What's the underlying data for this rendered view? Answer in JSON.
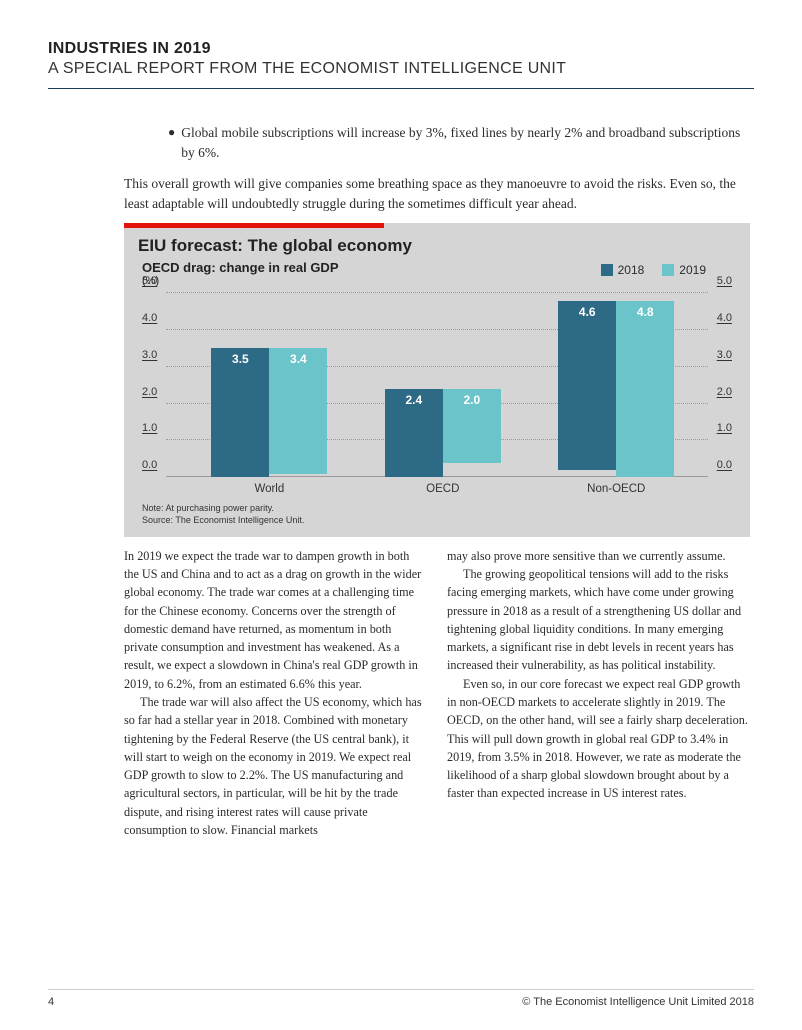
{
  "header": {
    "title": "INDUSTRIES IN 2019",
    "subtitle": "A SPECIAL REPORT FROM THE ECONOMIST INTELLIGENCE UNIT"
  },
  "bullet": "Global mobile subscriptions will increase by 3%, fixed lines by nearly 2% and broadband subscriptions by 6%.",
  "intro_para": "This overall growth will give companies some breathing space as they manoeuvre to avoid the risks. Even so, the least adaptable will undoubtedly struggle during the sometimes difficult year ahead.",
  "chart": {
    "type": "bar",
    "title": "EIU forecast: The global economy",
    "subtitle": "OECD drag: change in real GDP",
    "unit": "(%)",
    "legend": [
      {
        "label": "2018",
        "color": "#2d6a85"
      },
      {
        "label": "2019",
        "color": "#6bc4c9"
      }
    ],
    "categories": [
      "World",
      "OECD",
      "Non-OECD"
    ],
    "series": {
      "y2018": [
        3.5,
        2.4,
        4.6
      ],
      "y2019": [
        3.4,
        2.0,
        4.8
      ]
    },
    "ylim": [
      0,
      5.0
    ],
    "yticks": [
      0.0,
      1.0,
      2.0,
      3.0,
      4.0,
      5.0
    ],
    "note1": "Note: At purchasing power parity.",
    "note2": "Source: The Economist Intelligence Unit.",
    "colors": {
      "bg": "#d5d5d5",
      "accent": "#e3120b",
      "grid": "#9a9a9a"
    }
  },
  "col1": {
    "p1": "In 2019 we expect the trade war to dampen growth in both the US and China and to act as a drag on growth in the wider global economy. The trade war comes at a challenging time for the Chinese economy. Concerns over the strength of domestic demand have returned, as momentum in both private consumption and investment has weakened. As a result, we expect a slowdown in China's real GDP growth in 2019, to 6.2%, from an estimated 6.6% this year.",
    "p2": "The trade war will also affect the US economy, which has so far had a stellar year in 2018. Combined with monetary tightening by the Federal Reserve (the US central bank), it will start to weigh on the economy in 2019. We expect real GDP growth to slow to 2.2%. The US manufacturing and agricultural sectors, in particular, will be hit by the trade dispute, and rising interest rates will cause private consumption to slow. Financial markets"
  },
  "col2": {
    "p1": "may also prove more sensitive than we currently assume.",
    "p2": "The growing geopolitical tensions will add to the risks facing emerging markets, which have come under growing pressure in 2018 as a result of a strengthening US dollar and tightening global liquidity conditions. In many emerging markets, a significant rise in debt levels in recent years has increased their vulnerability, as has political instability.",
    "p3": "Even so, in our core forecast we expect real GDP growth in non-OECD markets to accelerate slightly in 2019. The OECD, on the other hand, will see a fairly sharp deceleration. This will pull down growth in global real GDP to 3.4% in 2019, from 3.5% in 2018. However, we rate as moderate the likelihood of a sharp global slowdown brought about by a faster than expected increase in US interest rates."
  },
  "footer": {
    "page": "4",
    "copyright": "© The Economist Intelligence Unit Limited 2018"
  }
}
